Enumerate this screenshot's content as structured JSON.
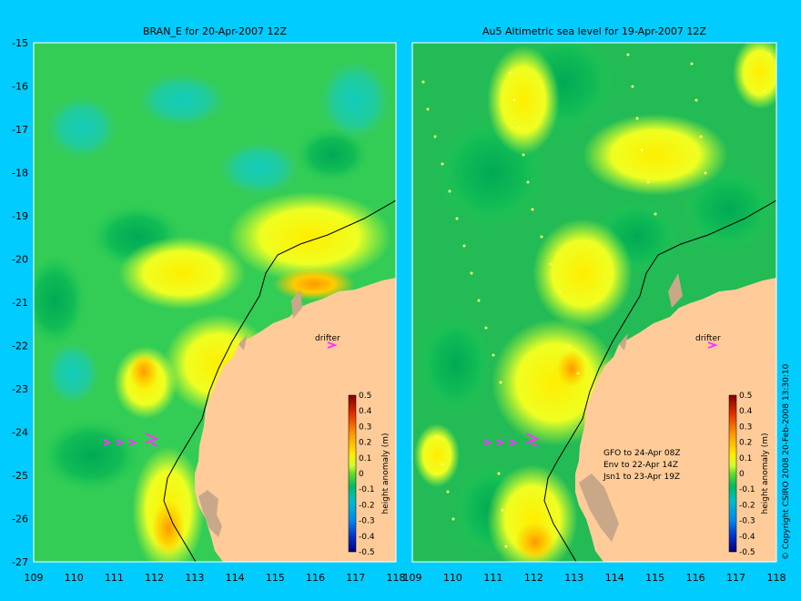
{
  "panels": [
    {
      "id": "bran",
      "title": "BRAN_E for 20-Apr-2007 12Z",
      "drifter_label": "drifter",
      "notes": []
    },
    {
      "id": "altimetric",
      "title": "Au5 Altimetric sea level  for 19-Apr-2007 12Z",
      "drifter_label": "drifter",
      "notes": [
        "GFO to 24-Apr 08Z",
        "Env to 22-Apr 14Z",
        "Jsn1 to 23-Apr 19Z"
      ]
    }
  ],
  "axes": {
    "x_ticks": [
      109,
      110,
      111,
      112,
      113,
      114,
      115,
      116,
      117,
      118
    ],
    "y_ticks": [
      -15,
      -16,
      -17,
      -18,
      -19,
      -20,
      -21,
      -22,
      -23,
      -24,
      -25,
      -26,
      -27
    ],
    "x_range": [
      109,
      118
    ],
    "y_range": [
      -27,
      -15
    ]
  },
  "colorbar": {
    "label": "height anomaly (m)",
    "ticks": [
      "0.5",
      "0.4",
      "0.3",
      "0.2",
      "0.1",
      "0",
      "-0.1",
      "-0.2",
      "-0.3",
      "-0.4",
      "-0.5"
    ]
  },
  "copyright": "© Copyright CSIRO 2008   20-Feb-2008 13:30:10",
  "colors": {
    "background": "#00ccff",
    "land": "#ffcc99",
    "drifter_track": "#ff33ff"
  }
}
